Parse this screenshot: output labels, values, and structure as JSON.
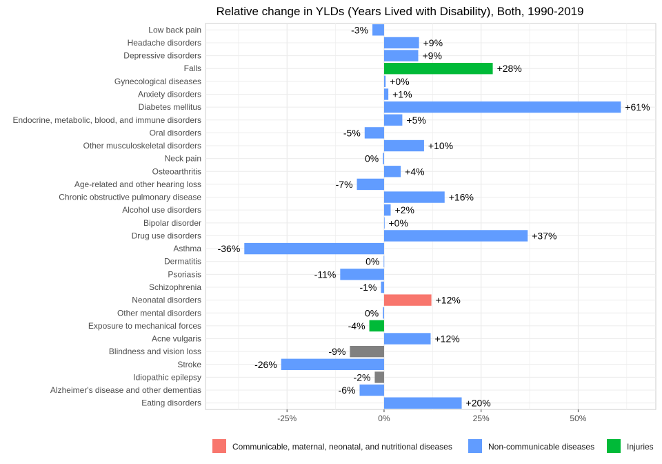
{
  "chart_data": {
    "type": "bar",
    "orientation": "horizontal",
    "title": "Relative change in YLDs (Years Lived with Disability), Both, 1990-2019",
    "xlabel": "",
    "ylabel": "",
    "xlim": [
      -46,
      70
    ],
    "x_ticks": [
      -25,
      0,
      25,
      50
    ],
    "x_tick_labels": [
      "-25%",
      "0%",
      "25%",
      "50%"
    ],
    "grid": true,
    "legend_position": "bottom",
    "groups": [
      {
        "name": "Communicable, maternal, neonatal, and nutritional diseases",
        "color": "#F8766D"
      },
      {
        "name": "Non-communicable diseases",
        "color": "#619CFF"
      },
      {
        "name": "Injuries",
        "color": "#00BA38"
      }
    ],
    "other_color": "#808080",
    "bars": [
      {
        "category": "Low back pain",
        "value": -3,
        "label": "-3%",
        "group": "Non-communicable diseases"
      },
      {
        "category": "Headache disorders",
        "value": 9,
        "label": "+9%",
        "group": "Non-communicable diseases"
      },
      {
        "category": "Depressive disorders",
        "value": 8.8,
        "label": "+9%",
        "group": "Non-communicable diseases"
      },
      {
        "category": "Falls",
        "value": 28,
        "label": "+28%",
        "group": "Injuries"
      },
      {
        "category": "Gynecological diseases",
        "value": 0.4,
        "label": "+0%",
        "group": "Non-communicable diseases"
      },
      {
        "category": "Anxiety disorders",
        "value": 1.1,
        "label": "+1%",
        "group": "Non-communicable diseases"
      },
      {
        "category": "Diabetes mellitus",
        "value": 61,
        "label": "+61%",
        "group": "Non-communicable diseases"
      },
      {
        "category": "Endocrine, metabolic, blood, and immune disorders",
        "value": 4.7,
        "label": "+5%",
        "group": "Non-communicable diseases"
      },
      {
        "category": "Oral disorders",
        "value": -5,
        "label": "-5%",
        "group": "Non-communicable diseases"
      },
      {
        "category": "Other musculoskeletal disorders",
        "value": 10.3,
        "label": "+10%",
        "group": "Non-communicable diseases"
      },
      {
        "category": "Neck pain",
        "value": -0.3,
        "label": "0%",
        "group": "Non-communicable diseases"
      },
      {
        "category": "Osteoarthritis",
        "value": 4.3,
        "label": "+4%",
        "group": "Non-communicable diseases"
      },
      {
        "category": "Age-related and other hearing loss",
        "value": -7,
        "label": "-7%",
        "group": "Non-communicable diseases"
      },
      {
        "category": "Chronic obstructive pulmonary disease",
        "value": 15.6,
        "label": "+16%",
        "group": "Non-communicable diseases"
      },
      {
        "category": "Alcohol use disorders",
        "value": 1.7,
        "label": "+2%",
        "group": "Non-communicable diseases"
      },
      {
        "category": "Bipolar disorder",
        "value": 0.1,
        "label": "+0%",
        "group": "Non-communicable diseases"
      },
      {
        "category": "Drug use disorders",
        "value": 37,
        "label": "+37%",
        "group": "Non-communicable diseases"
      },
      {
        "category": "Asthma",
        "value": -36,
        "label": "-36%",
        "group": "Non-communicable diseases"
      },
      {
        "category": "Dermatitis",
        "value": -0.1,
        "label": "0%",
        "group": "Non-communicable diseases"
      },
      {
        "category": "Psoriasis",
        "value": -11.3,
        "label": "-11%",
        "group": "Non-communicable diseases"
      },
      {
        "category": "Schizophrenia",
        "value": -0.8,
        "label": "-1%",
        "group": "Non-communicable diseases"
      },
      {
        "category": "Neonatal disorders",
        "value": 12.2,
        "label": "+12%",
        "group": "Communicable, maternal, neonatal, and nutritional diseases"
      },
      {
        "category": "Other mental disorders",
        "value": -0.3,
        "label": "0%",
        "group": "Non-communicable diseases"
      },
      {
        "category": "Exposure to mechanical forces",
        "value": -3.8,
        "label": "-4%",
        "group": "Injuries"
      },
      {
        "category": "Acne vulgaris",
        "value": 12,
        "label": "+12%",
        "group": "Non-communicable diseases"
      },
      {
        "category": "Blindness and vision loss",
        "value": -8.8,
        "label": "-9%",
        "group": "Other"
      },
      {
        "category": "Stroke",
        "value": -26.5,
        "label": "-26%",
        "group": "Non-communicable diseases"
      },
      {
        "category": "Idiopathic epilepsy",
        "value": -2.4,
        "label": "-2%",
        "group": "Other"
      },
      {
        "category": "Alzheimer's disease and other dementias",
        "value": -6.3,
        "label": "-6%",
        "group": "Non-communicable diseases"
      },
      {
        "category": "Eating disorders",
        "value": 20,
        "label": "+20%",
        "group": "Non-communicable diseases"
      }
    ]
  }
}
